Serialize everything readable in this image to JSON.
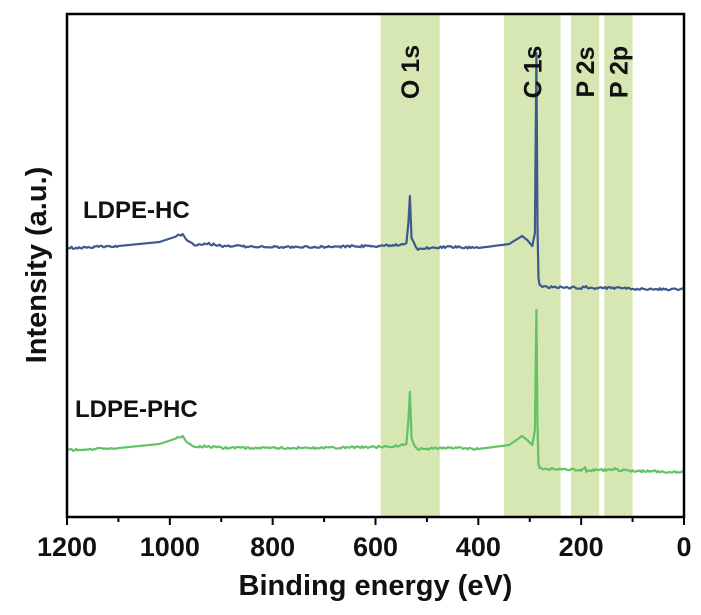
{
  "chart_data": {
    "type": "line",
    "xlabel": "Binding energy (eV)",
    "ylabel": "Intensity (a.u.)",
    "xlim": [
      1200,
      0
    ],
    "x_reversed": true,
    "x_ticks": [
      1200,
      1000,
      800,
      600,
      400,
      200,
      0
    ],
    "y_ticks_shown": false,
    "grid": false,
    "bands": [
      {
        "label": "O 1s",
        "from": 590,
        "to": 475
      },
      {
        "label": "C 1s",
        "from": 350,
        "to": 240
      },
      {
        "label": "P 2s",
        "from": 220,
        "to": 165
      },
      {
        "label": "P 2p",
        "from": 155,
        "to": 100
      }
    ],
    "series": [
      {
        "name": "LDPE-HC",
        "color": "#3d5a8c",
        "offset": 248,
        "points": [
          [
            1200,
            0
          ],
          [
            1100,
            -2
          ],
          [
            1020,
            -6
          ],
          [
            985,
            -12
          ],
          [
            975,
            -14
          ],
          [
            965,
            -6
          ],
          [
            950,
            -3
          ],
          [
            930,
            -5
          ],
          [
            900,
            -2
          ],
          [
            800,
            -1
          ],
          [
            700,
            -1
          ],
          [
            600,
            -2
          ],
          [
            560,
            -3
          ],
          [
            540,
            -5
          ],
          [
            536,
            -25
          ],
          [
            533,
            -52
          ],
          [
            530,
            -10
          ],
          [
            525,
            -5
          ],
          [
            520,
            1
          ],
          [
            500,
            0
          ],
          [
            450,
            -1
          ],
          [
            400,
            0
          ],
          [
            340,
            -4
          ],
          [
            315,
            -12
          ],
          [
            305,
            -8
          ],
          [
            295,
            -2
          ],
          [
            290,
            -15
          ],
          [
            287,
            -195
          ],
          [
            285,
            -20
          ],
          [
            283,
            30
          ],
          [
            281,
            37
          ],
          [
            270,
            39
          ],
          [
            200,
            40
          ],
          [
            190,
            38
          ],
          [
            185,
            40
          ],
          [
            130,
            40
          ],
          [
            100,
            41
          ],
          [
            0,
            41
          ]
        ]
      },
      {
        "name": "LDPE-PHC",
        "color": "#63c266",
        "offset": 450,
        "points": [
          [
            1200,
            0
          ],
          [
            1100,
            -2
          ],
          [
            1020,
            -6
          ],
          [
            985,
            -12
          ],
          [
            975,
            -14
          ],
          [
            965,
            -6
          ],
          [
            950,
            -3
          ],
          [
            930,
            -4
          ],
          [
            900,
            -2
          ],
          [
            800,
            -2
          ],
          [
            700,
            -2
          ],
          [
            600,
            -3
          ],
          [
            560,
            -4
          ],
          [
            540,
            -6
          ],
          [
            536,
            -30
          ],
          [
            533,
            -58
          ],
          [
            530,
            -12
          ],
          [
            525,
            -5
          ],
          [
            520,
            -1
          ],
          [
            500,
            -1
          ],
          [
            450,
            -2
          ],
          [
            400,
            -1
          ],
          [
            340,
            -5
          ],
          [
            315,
            -14
          ],
          [
            305,
            -10
          ],
          [
            295,
            -5
          ],
          [
            290,
            -20
          ],
          [
            287,
            -140
          ],
          [
            285,
            -25
          ],
          [
            283,
            14
          ],
          [
            281,
            18
          ],
          [
            270,
            19
          ],
          [
            200,
            20
          ],
          [
            192,
            18
          ],
          [
            190,
            21
          ],
          [
            180,
            20
          ],
          [
            140,
            20
          ],
          [
            135,
            18
          ],
          [
            130,
            20
          ],
          [
            100,
            21
          ],
          [
            0,
            22
          ]
        ]
      }
    ]
  }
}
